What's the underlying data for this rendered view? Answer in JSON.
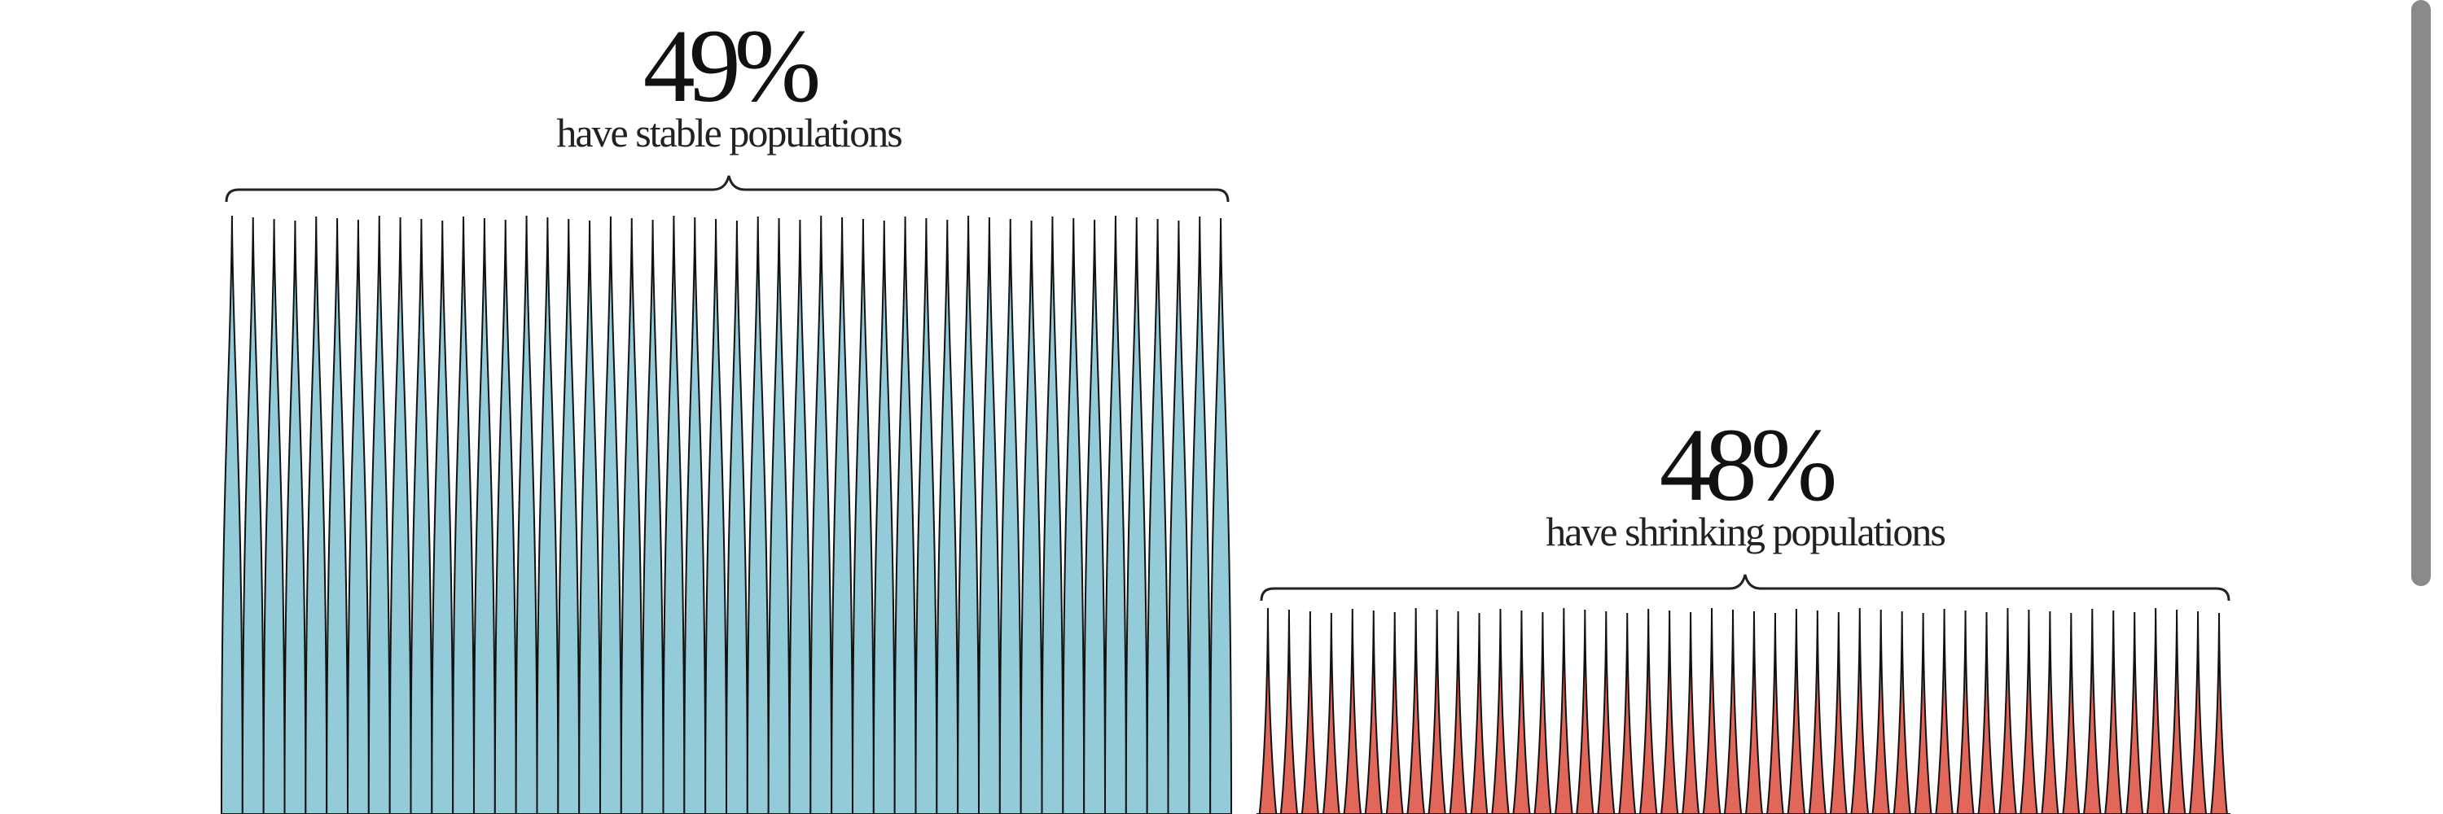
{
  "groups": [
    {
      "percent": "49%",
      "label": "have stable populations"
    },
    {
      "percent": "48%",
      "label": "have shrinking populations"
    }
  ]
}
